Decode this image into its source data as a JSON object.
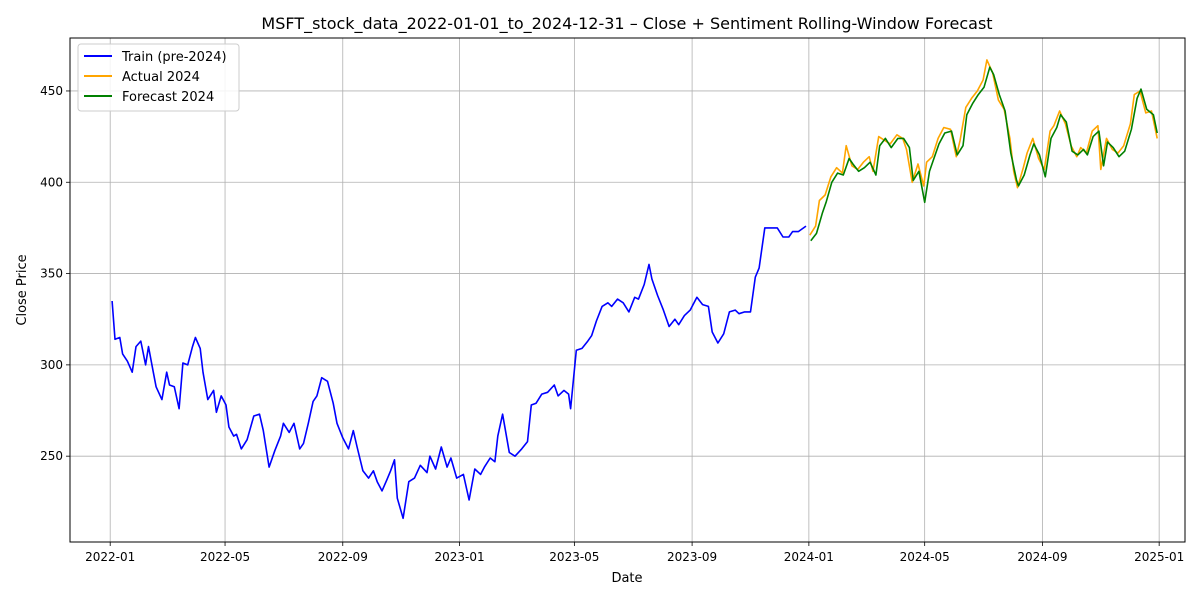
{
  "chart_data": {
    "type": "line",
    "title": "MSFT_stock_data_2022-01-01_to_2024-12-31 – Close + Sentiment Rolling-Window Forecast",
    "xlabel": "Date",
    "ylabel": "Close Price",
    "xlim": [
      "2021-11-20",
      "2025-01-28"
    ],
    "ylim": [
      203,
      479
    ],
    "grid": true,
    "legend_position": "upper-left",
    "x_ticks": [
      "2022-01",
      "2022-05",
      "2022-09",
      "2023-01",
      "2023-05",
      "2023-09",
      "2024-01",
      "2024-05",
      "2024-09",
      "2025-01"
    ],
    "x_tick_dates": [
      "2022-01-01",
      "2022-05-01",
      "2022-09-01",
      "2023-01-01",
      "2023-05-01",
      "2023-09-01",
      "2024-01-01",
      "2024-05-01",
      "2024-09-01",
      "2025-01-01"
    ],
    "y_ticks": [
      250,
      300,
      350,
      400,
      450
    ],
    "series": [
      {
        "name": "Train (pre-2024)",
        "color": "#0000ff",
        "x": [
          "2022-01-03",
          "2022-01-06",
          "2022-01-11",
          "2022-01-14",
          "2022-01-19",
          "2022-01-24",
          "2022-01-28",
          "2022-02-02",
          "2022-02-07",
          "2022-02-10",
          "2022-02-15",
          "2022-02-18",
          "2022-02-24",
          "2022-03-01",
          "2022-03-04",
          "2022-03-09",
          "2022-03-14",
          "2022-03-18",
          "2022-03-23",
          "2022-03-28",
          "2022-03-31",
          "2022-04-05",
          "2022-04-08",
          "2022-04-13",
          "2022-04-19",
          "2022-04-22",
          "2022-04-27",
          "2022-05-02",
          "2022-05-05",
          "2022-05-10",
          "2022-05-13",
          "2022-05-18",
          "2022-05-24",
          "2022-05-31",
          "2022-06-06",
          "2022-06-10",
          "2022-06-16",
          "2022-06-22",
          "2022-06-28",
          "2022-07-01",
          "2022-07-07",
          "2022-07-12",
          "2022-07-18",
          "2022-07-22",
          "2022-07-27",
          "2022-08-01",
          "2022-08-05",
          "2022-08-10",
          "2022-08-16",
          "2022-08-22",
          "2022-08-26",
          "2022-09-01",
          "2022-09-07",
          "2022-09-12",
          "2022-09-16",
          "2022-09-22",
          "2022-09-28",
          "2022-10-03",
          "2022-10-07",
          "2022-10-12",
          "2022-10-17",
          "2022-10-21",
          "2022-10-25",
          "2022-10-28",
          "2022-11-03",
          "2022-11-09",
          "2022-11-15",
          "2022-11-21",
          "2022-11-28",
          "2022-12-01",
          "2022-12-07",
          "2022-12-13",
          "2022-12-19",
          "2022-12-23",
          "2022-12-29",
          "2023-01-05",
          "2023-01-11",
          "2023-01-17",
          "2023-01-23",
          "2023-01-27",
          "2023-02-02",
          "2023-02-07",
          "2023-02-10",
          "2023-02-15",
          "2023-02-22",
          "2023-02-28",
          "2023-03-07",
          "2023-03-13",
          "2023-03-17",
          "2023-03-22",
          "2023-03-28",
          "2023-04-03",
          "2023-04-10",
          "2023-04-14",
          "2023-04-20",
          "2023-04-25",
          "2023-04-27",
          "2023-05-03",
          "2023-05-09",
          "2023-05-15",
          "2023-05-19",
          "2023-05-24",
          "2023-05-30",
          "2023-06-05",
          "2023-06-09",
          "2023-06-15",
          "2023-06-21",
          "2023-06-27",
          "2023-07-03",
          "2023-07-07",
          "2023-07-13",
          "2023-07-18",
          "2023-07-21",
          "2023-07-27",
          "2023-08-02",
          "2023-08-08",
          "2023-08-14",
          "2023-08-18",
          "2023-08-24",
          "2023-08-30",
          "2023-09-06",
          "2023-09-12",
          "2023-09-18",
          "2023-09-22",
          "2023-09-28",
          "2023-10-04",
          "2023-10-10",
          "2023-10-16",
          "2023-10-20",
          "2023-10-26",
          "2023-11-01",
          "2023-11-06",
          "2023-11-10",
          "2023-11-16",
          "2023-11-22",
          "2023-11-29",
          "2023-12-05",
          "2023-12-11",
          "2023-12-15",
          "2023-12-21",
          "2023-12-29"
        ],
        "y": [
          335,
          314,
          315,
          306,
          302,
          296,
          310,
          313,
          300,
          310,
          296,
          288,
          281,
          296,
          289,
          288,
          276,
          301,
          300,
          310,
          315,
          309,
          296,
          281,
          286,
          274,
          283,
          278,
          266,
          261,
          262,
          254,
          259,
          272,
          273,
          264,
          244,
          253,
          261,
          268,
          263,
          268,
          254,
          257,
          268,
          280,
          283,
          293,
          291,
          279,
          268,
          260,
          254,
          264,
          255,
          242,
          238,
          242,
          236,
          231,
          237,
          242,
          248,
          227,
          216,
          236,
          238,
          245,
          241,
          250,
          243,
          255,
          244,
          249,
          238,
          240,
          226,
          243,
          240,
          244,
          249,
          247,
          261,
          273,
          252,
          250,
          254,
          258,
          278,
          279,
          284,
          285,
          289,
          283,
          286,
          284,
          276,
          308,
          309,
          313,
          316,
          324,
          332,
          334,
          332,
          336,
          334,
          329,
          337,
          336,
          344,
          355,
          347,
          338,
          330,
          321,
          325,
          322,
          327,
          330,
          337,
          333,
          332,
          318,
          312,
          317,
          329,
          330,
          328,
          329,
          329,
          348,
          353,
          375,
          375,
          375,
          370,
          370,
          373,
          373,
          376
        ]
      },
      {
        "name": "Actual 2024",
        "color": "#ffa500",
        "x": [
          "2024-01-02",
          "2024-01-08",
          "2024-01-12",
          "2024-01-18",
          "2024-01-24",
          "2024-01-30",
          "2024-02-05",
          "2024-02-09",
          "2024-02-15",
          "2024-02-21",
          "2024-02-27",
          "2024-03-04",
          "2024-03-08",
          "2024-03-14",
          "2024-03-20",
          "2024-03-26",
          "2024-04-02",
          "2024-04-08",
          "2024-04-12",
          "2024-04-18",
          "2024-04-24",
          "2024-04-30",
          "2024-05-03",
          "2024-05-09",
          "2024-05-15",
          "2024-05-21",
          "2024-05-28",
          "2024-06-03",
          "2024-06-07",
          "2024-06-13",
          "2024-06-19",
          "2024-06-25",
          "2024-07-01",
          "2024-07-05",
          "2024-07-11",
          "2024-07-17",
          "2024-07-23",
          "2024-07-29",
          "2024-08-02",
          "2024-08-06",
          "2024-08-12",
          "2024-08-16",
          "2024-08-22",
          "2024-08-28",
          "2024-09-03",
          "2024-09-09",
          "2024-09-13",
          "2024-09-19",
          "2024-09-25",
          "2024-10-01",
          "2024-10-07",
          "2024-10-11",
          "2024-10-17",
          "2024-10-23",
          "2024-10-29",
          "2024-11-01",
          "2024-11-07",
          "2024-11-13",
          "2024-11-19",
          "2024-11-25",
          "2024-12-02",
          "2024-12-06",
          "2024-12-12",
          "2024-12-18",
          "2024-12-24",
          "2024-12-30"
        ],
        "y": [
          371,
          376,
          390,
          393,
          403,
          408,
          405,
          420,
          409,
          407,
          411,
          414,
          406,
          425,
          423,
          421,
          426,
          424,
          418,
          400,
          410,
          398,
          411,
          414,
          424,
          430,
          429,
          414,
          423,
          441,
          446,
          450,
          456,
          467,
          460,
          445,
          440,
          424,
          406,
          397,
          408,
          416,
          424,
          413,
          407,
          428,
          431,
          439,
          432,
          420,
          414,
          419,
          416,
          428,
          431,
          407,
          424,
          418,
          416,
          420,
          432,
          448,
          450,
          438,
          439,
          424
        ]
      },
      {
        "name": "Forecast 2024",
        "color": "#008000",
        "x": [
          "2024-01-03",
          "2024-01-09",
          "2024-01-15",
          "2024-01-19",
          "2024-01-25",
          "2024-01-31",
          "2024-02-06",
          "2024-02-12",
          "2024-02-16",
          "2024-02-22",
          "2024-02-28",
          "2024-03-05",
          "2024-03-11",
          "2024-03-15",
          "2024-03-21",
          "2024-03-27",
          "2024-04-03",
          "2024-04-09",
          "2024-04-15",
          "2024-04-19",
          "2024-04-25",
          "2024-05-01",
          "2024-05-06",
          "2024-05-10",
          "2024-05-16",
          "2024-05-22",
          "2024-05-29",
          "2024-06-04",
          "2024-06-10",
          "2024-06-14",
          "2024-06-20",
          "2024-06-26",
          "2024-07-02",
          "2024-07-08",
          "2024-07-12",
          "2024-07-18",
          "2024-07-24",
          "2024-07-30",
          "2024-08-05",
          "2024-08-07",
          "2024-08-13",
          "2024-08-19",
          "2024-08-23",
          "2024-08-29",
          "2024-09-04",
          "2024-09-10",
          "2024-09-16",
          "2024-09-20",
          "2024-09-26",
          "2024-10-02",
          "2024-10-08",
          "2024-10-14",
          "2024-10-18",
          "2024-10-24",
          "2024-10-30",
          "2024-11-04",
          "2024-11-08",
          "2024-11-14",
          "2024-11-20",
          "2024-11-26",
          "2024-12-03",
          "2024-12-09",
          "2024-12-13",
          "2024-12-19",
          "2024-12-26",
          "2024-12-30"
        ],
        "y": [
          368,
          372,
          383,
          389,
          400,
          405,
          404,
          413,
          410,
          406,
          408,
          411,
          404,
          420,
          424,
          419,
          424,
          424,
          419,
          401,
          406,
          389,
          406,
          412,
          421,
          427,
          428,
          415,
          420,
          437,
          443,
          448,
          452,
          463,
          459,
          448,
          439,
          416,
          401,
          398,
          404,
          415,
          421,
          415,
          403,
          424,
          430,
          437,
          433,
          417,
          415,
          418,
          415,
          425,
          428,
          409,
          422,
          419,
          414,
          417,
          429,
          446,
          451,
          440,
          437,
          427
        ]
      }
    ]
  }
}
